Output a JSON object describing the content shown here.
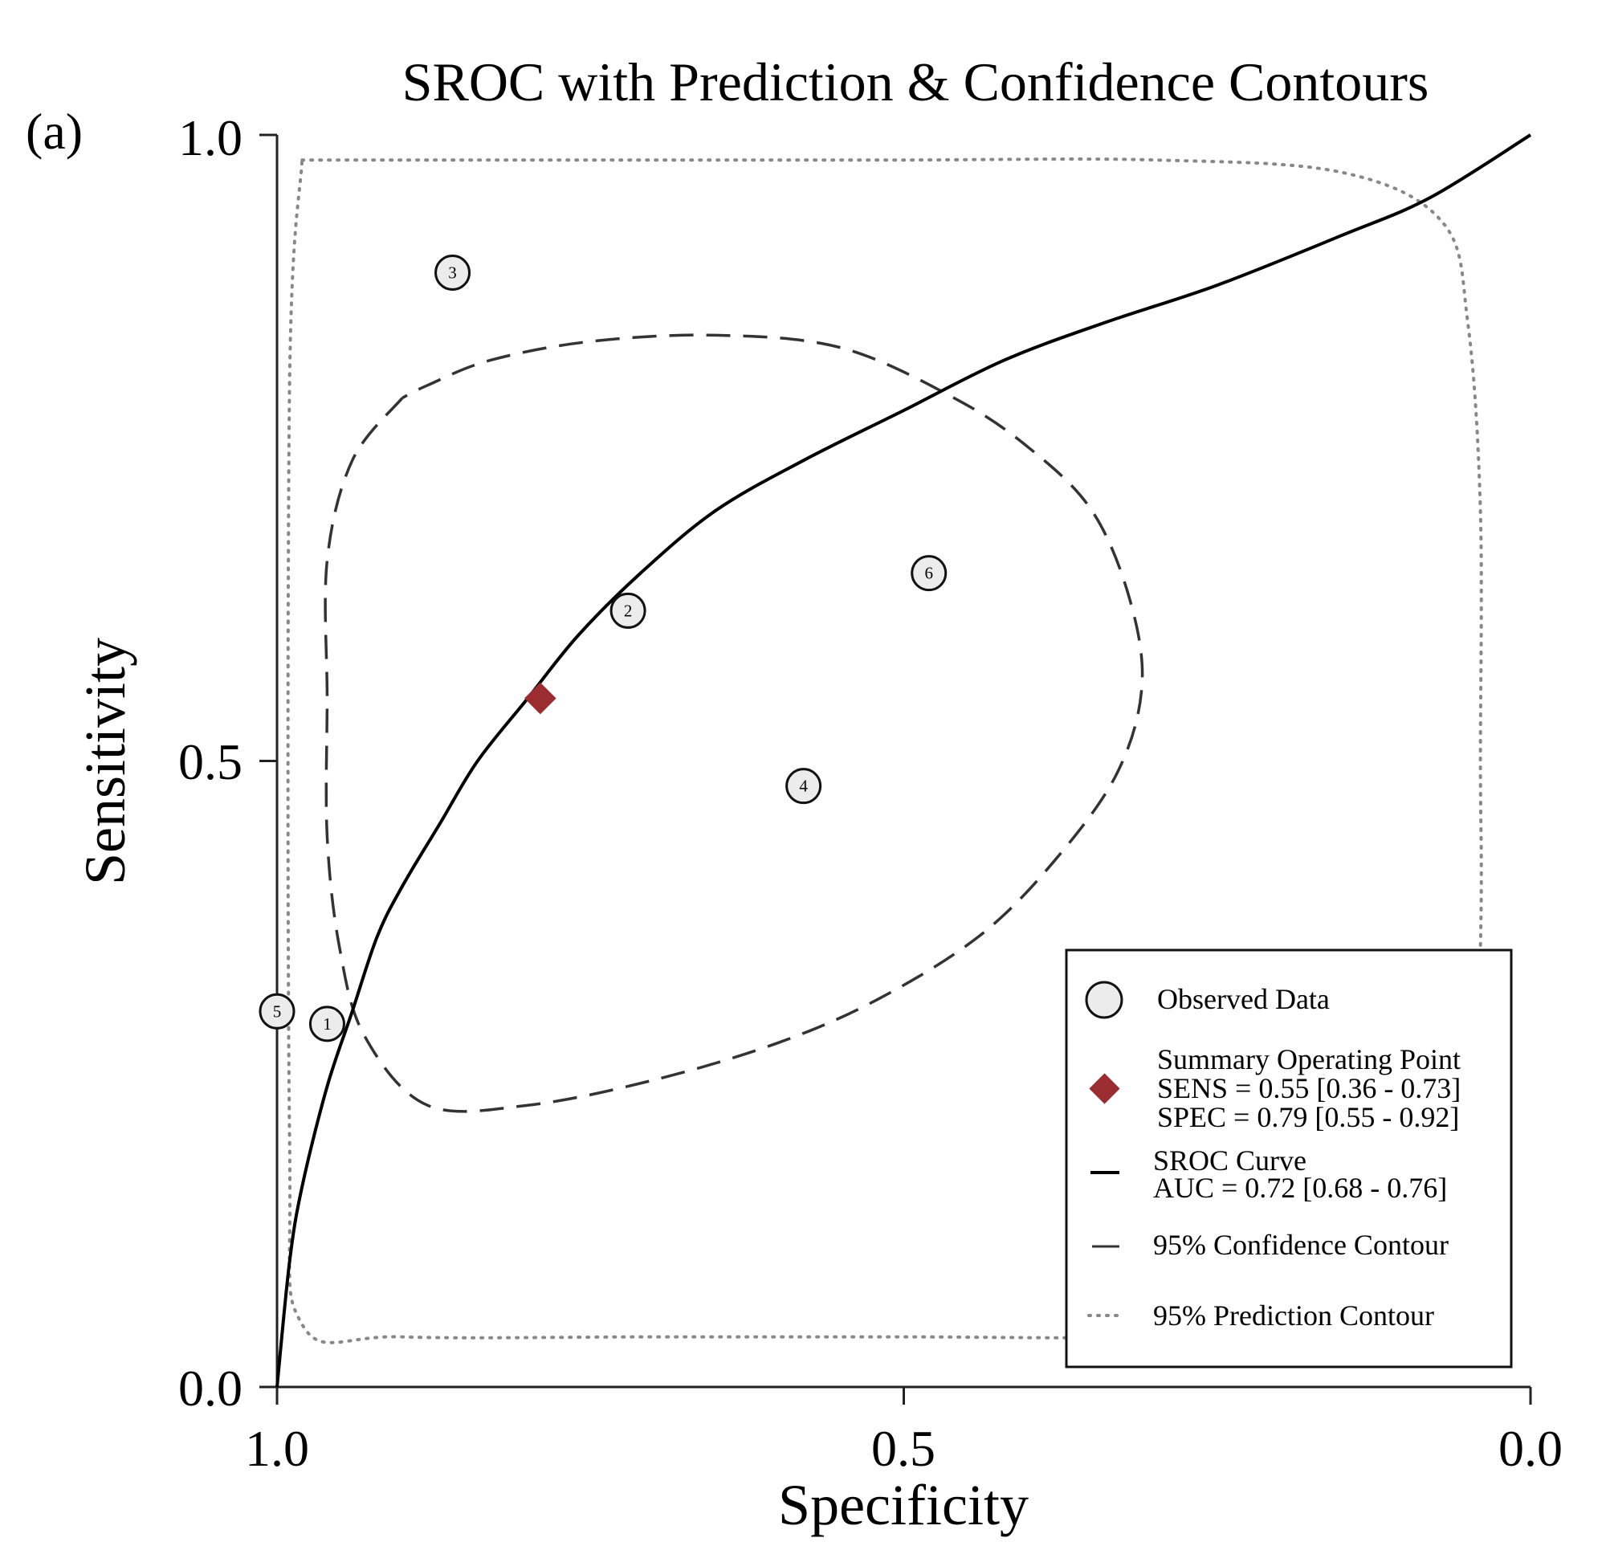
{
  "chart_data": {
    "type": "scatter",
    "title": "SROC with Prediction & Confidence Contours",
    "panel_label": "(a)",
    "xlabel": "Specificity",
    "ylabel": "Sensitivity",
    "xlim": [
      1.0,
      0.0
    ],
    "ylim": [
      0.0,
      1.0
    ],
    "x_reversed": true,
    "x_ticks": [
      "1.0",
      "0.5",
      "0.0"
    ],
    "y_ticks": [
      "1.0",
      "0.5",
      "0.0"
    ],
    "grid": false,
    "legend_position": "bottom-right",
    "observed_data": [
      {
        "label": "1",
        "specificity": 0.96,
        "sensitivity": 0.29
      },
      {
        "label": "2",
        "specificity": 0.72,
        "sensitivity": 0.62
      },
      {
        "label": "3",
        "specificity": 0.86,
        "sensitivity": 0.89
      },
      {
        "label": "4",
        "specificity": 0.58,
        "sensitivity": 0.48
      },
      {
        "label": "5",
        "specificity": 1.0,
        "sensitivity": 0.3
      },
      {
        "label": "6",
        "specificity": 0.48,
        "sensitivity": 0.65
      }
    ],
    "summary_point": {
      "specificity": 0.79,
      "sensitivity": 0.55,
      "color": "#9b2d30"
    },
    "sroc_curve": {
      "specificity": [
        1.0,
        0.99,
        0.98,
        0.96,
        0.94,
        0.92,
        0.9,
        0.87,
        0.84,
        0.8,
        0.76,
        0.71,
        0.65,
        0.58,
        0.5,
        0.42,
        0.34,
        0.25,
        0.15,
        0.08,
        0.0
      ],
      "sensitivity": [
        0.0,
        0.1,
        0.16,
        0.24,
        0.3,
        0.36,
        0.4,
        0.45,
        0.5,
        0.55,
        0.6,
        0.65,
        0.7,
        0.74,
        0.78,
        0.82,
        0.85,
        0.88,
        0.92,
        0.95,
        1.0
      ]
    },
    "confidence_contour": {
      "specificity": [
        0.9,
        0.93,
        0.95,
        0.96,
        0.96,
        0.95,
        0.93,
        0.9,
        0.86,
        0.8,
        0.74,
        0.66,
        0.58,
        0.52,
        0.46,
        0.4,
        0.35,
        0.32,
        0.32,
        0.33,
        0.36,
        0.4,
        0.46,
        0.52,
        0.6,
        0.68,
        0.76,
        0.82,
        0.88,
        0.92,
        0.95,
        0.96,
        0.95,
        0.92,
        0.9
      ],
      "sensitivity": [
        0.81,
        0.77,
        0.72,
        0.64,
        0.54,
        0.44,
        0.36,
        0.29,
        0.26,
        0.25,
        0.25,
        0.27,
        0.29,
        0.31,
        0.34,
        0.39,
        0.45,
        0.52,
        0.59,
        0.66,
        0.71,
        0.75,
        0.79,
        0.8,
        0.84,
        0.84,
        0.84,
        0.83,
        0.81,
        0.25,
        0.26,
        0.29,
        0.25,
        0.23,
        0.81
      ]
    },
    "prediction_contour": {
      "specificity": [
        0.98,
        0.9,
        0.7,
        0.5,
        0.3,
        0.15,
        0.07,
        0.05,
        0.04,
        0.04,
        0.04,
        0.05,
        0.1,
        0.3,
        0.5,
        0.7,
        0.9,
        0.98,
        0.99,
        0.99,
        0.98
      ],
      "sensitivity": [
        0.98,
        0.98,
        0.98,
        0.98,
        0.98,
        0.97,
        0.93,
        0.85,
        0.7,
        0.5,
        0.35,
        0.05,
        0.05,
        0.04,
        0.04,
        0.04,
        0.04,
        0.05,
        0.2,
        0.8,
        0.98
      ]
    },
    "legend": {
      "observed": "Observed Data",
      "summary_title": "Summary Operating Point",
      "sens": "SENS = 0.55 [0.36 - 0.73]",
      "spec": "SPEC = 0.79 [0.55 - 0.92]",
      "sroc_title": "SROC Curve",
      "auc": "AUC = 0.72 [0.68 - 0.76]",
      "confidence": "95% Confidence Contour",
      "prediction": "95% Prediction Contour"
    }
  }
}
